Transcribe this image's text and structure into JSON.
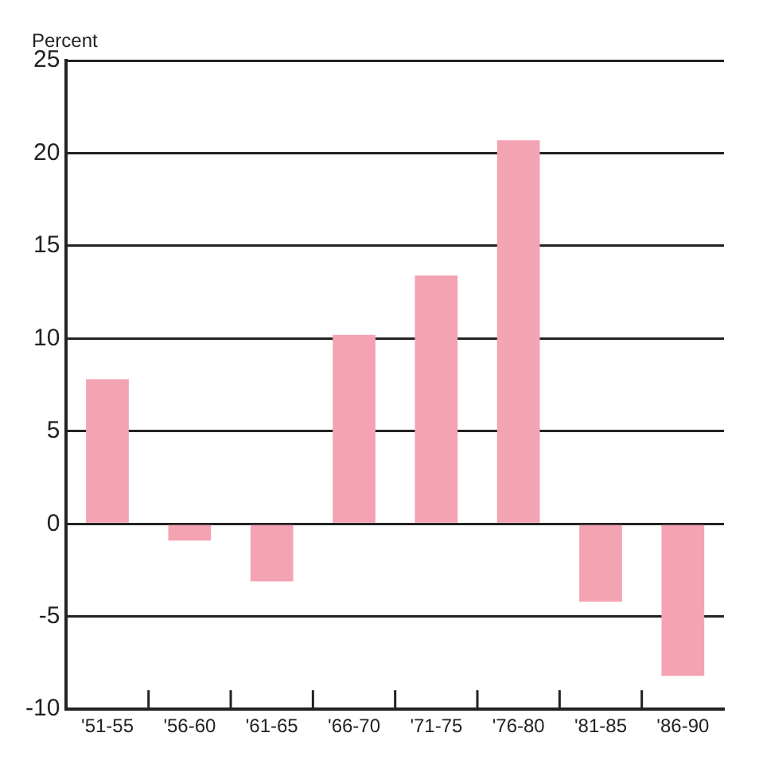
{
  "chart_data": {
    "type": "bar",
    "ylabel": "Percent",
    "categories": [
      "'51-55",
      "'56-60",
      "'61-65",
      "'66-70",
      "'71-75",
      "'76-80",
      "'81-85",
      "'86-90"
    ],
    "values": [
      7.8,
      -0.9,
      -3.1,
      10.2,
      13.4,
      20.7,
      -4.2,
      -8.2
    ],
    "color": "#f4a3b3",
    "ylim": [
      -10,
      25
    ],
    "yticks": [
      -10,
      -5,
      0,
      5,
      10,
      15,
      20,
      25
    ],
    "grid": "y"
  }
}
